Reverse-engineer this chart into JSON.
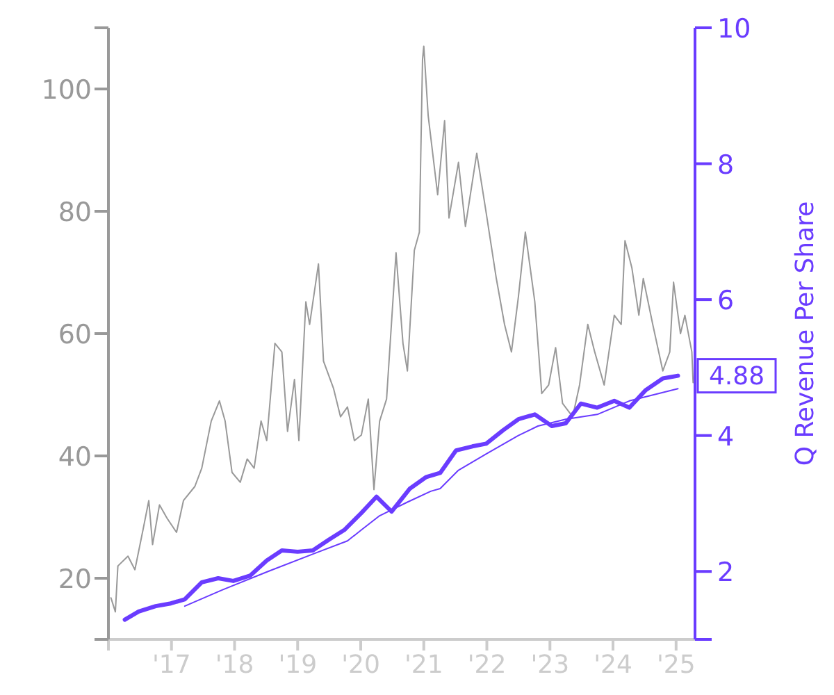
{
  "chart_data": {
    "type": "line",
    "y2label": "Q Revenue Per Share",
    "xlim": [
      2016,
      2025.3
    ],
    "xticks": [
      {
        "value": 2016,
        "label": null
      },
      {
        "value": 2017,
        "label": "'17"
      },
      {
        "value": 2018,
        "label": "'18"
      },
      {
        "value": 2019,
        "label": "'19"
      },
      {
        "value": 2020,
        "label": "'20"
      },
      {
        "value": 2021,
        "label": "'21"
      },
      {
        "value": 2022,
        "label": "'22"
      },
      {
        "value": 2023,
        "label": "'23"
      },
      {
        "value": 2024,
        "label": "'24"
      },
      {
        "value": 2025,
        "label": "'25"
      }
    ],
    "ylim": [
      10,
      110
    ],
    "yticks": [
      {
        "value": 10,
        "label": null
      },
      20,
      40,
      60,
      80,
      100,
      {
        "value": 110,
        "label": null
      }
    ],
    "y2lim": [
      1,
      10
    ],
    "y2ticks": [
      {
        "value": 1,
        "label": null
      },
      2,
      4,
      6,
      8,
      10
    ],
    "grid": false,
    "series": [
      {
        "color": "#999999",
        "x": [
          2016.04,
          2016.11,
          2016.15,
          2016.31,
          2016.42,
          2016.55,
          2016.64,
          2016.7,
          2016.81,
          2016.93,
          2017.08,
          2017.19,
          2017.37,
          2017.48,
          2017.63,
          2017.76,
          2017.85,
          2017.96,
          2018.09,
          2018.2,
          2018.31,
          2018.42,
          2018.51,
          2018.64,
          2018.75,
          2018.84,
          2018.95,
          2019.02,
          2019.13,
          2019.19,
          2019.33,
          2019.41,
          2019.57,
          2019.68,
          2019.79,
          2019.9,
          2020.01,
          2020.12,
          2020.21,
          2020.3,
          2020.41,
          2020.56,
          2020.67,
          2020.74,
          2020.85,
          2020.93,
          2020.98,
          2021,
          2021.07,
          2021.22,
          2021.33,
          2021.4,
          2021.55,
          2021.66,
          2021.84,
          2021.99,
          2022.15,
          2022.28,
          2022.39,
          2022.5,
          2022.61,
          2022.76,
          2022.87,
          2022.98,
          2023.09,
          2023.2,
          2023.36,
          2023.47,
          2023.6,
          2023.71,
          2023.86,
          2024.02,
          2024.13,
          2024.19,
          2024.3,
          2024.41,
          2024.48,
          2024.63,
          2024.79,
          2024.9,
          2024.96,
          2025.07,
          2025.14,
          2025.25,
          2025.27
        ],
        "values": [
          16.8,
          14.5,
          22,
          23.6,
          21.4,
          28,
          32.7,
          25.5,
          32,
          29.8,
          27.5,
          32.7,
          35,
          38,
          45.7,
          49,
          45.7,
          37.3,
          35.7,
          39.5,
          38,
          45.7,
          42.5,
          58.4,
          57,
          44,
          52.5,
          42.5,
          65.2,
          61.5,
          71.4,
          55.5,
          51,
          46.4,
          48,
          42.5,
          43.4,
          49.3,
          34.5,
          45.7,
          49.3,
          73.2,
          58.4,
          53.9,
          73.6,
          76.6,
          104.8,
          107,
          95.6,
          82.7,
          94.8,
          78.9,
          88,
          77.5,
          89.5,
          79.7,
          69,
          61.5,
          57,
          66,
          76.6,
          65.2,
          50.2,
          51.6,
          57.7,
          48.6,
          46.4,
          51.6,
          61.5,
          57,
          51.6,
          63,
          61.5,
          75.2,
          70.7,
          63,
          69,
          61.5,
          53.9,
          57,
          68.4,
          60,
          63,
          57,
          52
        ]
      },
      {
        "color": "#6a3cff",
        "axis": "y2",
        "x": [
          2016.26,
          2016.48,
          2016.75,
          2016.99,
          2017.21,
          2017.48,
          2017.74,
          2017.98,
          2018.25,
          2018.51,
          2018.75,
          2019,
          2019.24,
          2019.5,
          2019.74,
          2020.01,
          2020.25,
          2020.49,
          2020.78,
          2021.04,
          2021.26,
          2021.51,
          2021.77,
          2021.99,
          2022.26,
          2022.5,
          2022.76,
          2023.03,
          2023.25,
          2023.49,
          2023.75,
          2024.02,
          2024.26,
          2024.52,
          2024.79,
          2025.03
        ],
        "values": [
          1.29,
          1.41,
          1.49,
          1.53,
          1.59,
          1.84,
          1.9,
          1.86,
          1.94,
          2.16,
          2.31,
          2.29,
          2.31,
          2.47,
          2.61,
          2.86,
          3.1,
          2.88,
          3.22,
          3.39,
          3.45,
          3.78,
          3.84,
          3.88,
          4.08,
          4.24,
          4.31,
          4.14,
          4.18,
          4.47,
          4.41,
          4.51,
          4.41,
          4.67,
          4.84,
          4.88
        ],
        "value_labels": [
          null,
          null,
          null,
          null,
          null,
          null,
          null,
          null,
          null,
          null,
          null,
          null,
          null,
          null,
          null,
          null,
          null,
          null,
          null,
          null,
          null,
          null,
          null,
          null,
          null,
          null,
          null,
          null,
          null,
          null,
          null,
          null,
          null,
          null,
          null,
          "4.88"
        ]
      },
      {
        "color": "#6a3cff",
        "axis": "y2",
        "x": [
          2017.21,
          2017.81,
          2018.53,
          2019.28,
          2019.79,
          2020.01,
          2020.3,
          2020.74,
          2021.11,
          2021.26,
          2021.55,
          2021.99,
          2022.5,
          2022.81,
          2023.25,
          2023.75,
          2024.26,
          2025.03
        ],
        "values": [
          1.49,
          1.73,
          2,
          2.27,
          2.45,
          2.61,
          2.82,
          3.02,
          3.18,
          3.22,
          3.49,
          3.73,
          4,
          4.14,
          4.24,
          4.31,
          4.51,
          4.69
        ]
      }
    ]
  }
}
